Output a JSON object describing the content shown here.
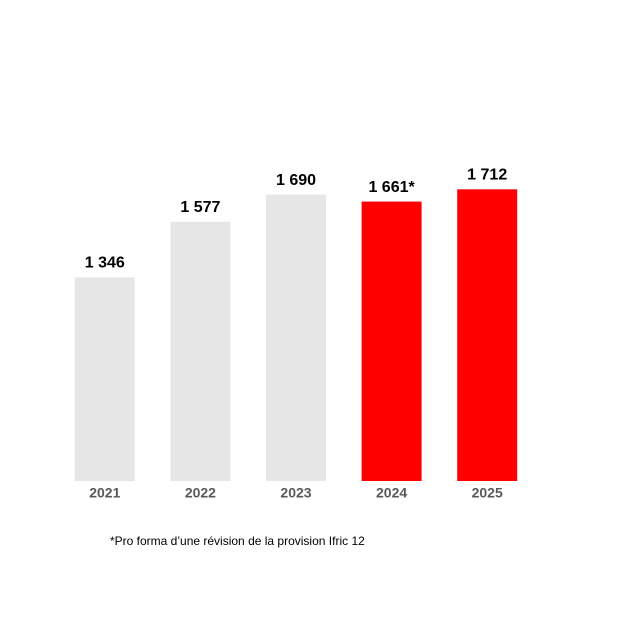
{
  "chart_data": {
    "type": "bar",
    "categories": [
      "2021",
      "2022",
      "2023",
      "2024",
      "2025"
    ],
    "values": [
      1346,
      1577,
      1690,
      1661,
      1712
    ],
    "value_labels": [
      "1 346",
      "1 577",
      "1 690",
      "1 661*",
      "1 712"
    ],
    "colors": [
      "#e6e6e6",
      "#e6e6e6",
      "#e6e6e6",
      "#ff0000",
      "#ff0000"
    ],
    "ylim": [
      500,
      2000
    ],
    "footnote": "*Pro forma d’une révision de la provision Ifric 12"
  }
}
